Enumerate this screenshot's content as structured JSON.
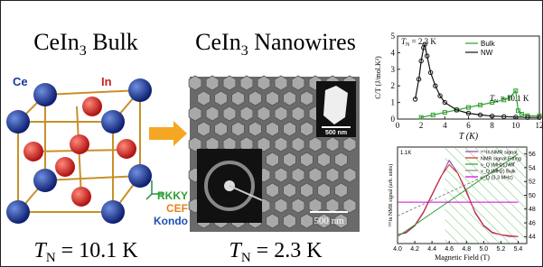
{
  "left": {
    "title": {
      "main": "CeIn",
      "sub": "3",
      "rest": " Bulk"
    },
    "atoms": [
      "Ce",
      "In"
    ],
    "interactions": [
      "RKKY",
      "CEF",
      "Kondo"
    ],
    "tn": {
      "symbol": "T",
      "sub": "N",
      "rest": " = 10.1 K"
    }
  },
  "middle": {
    "title": {
      "main": "CeIn",
      "sub": "3",
      "rest": " Nanowires"
    },
    "scale_bars": [
      "500 nm",
      "500 nm"
    ],
    "tn": {
      "symbol": "T",
      "sub": "N",
      "rest": " = 2.3 K"
    }
  },
  "chart_data": [
    {
      "type": "line",
      "ylabel": "C/T (J/mol.K²)",
      "xlabel": "T (K)",
      "xlim": [
        0,
        12
      ],
      "xticks": [
        0,
        2,
        4,
        6,
        8,
        10,
        12
      ],
      "ylim": [
        0,
        5
      ],
      "yticks": [
        0,
        1,
        2,
        3,
        4,
        5
      ],
      "legend": "upper right",
      "annotations": [
        {
          "symbol": "T",
          "sub": "N",
          "rest": " = 2.3 K"
        },
        {
          "symbol": "T",
          "sub": "N",
          "rest": " = 10.1 K"
        }
      ],
      "series": [
        {
          "name": "Bulk",
          "color": "#2ca02c",
          "marker": "square",
          "x": [
            2,
            3,
            4,
            5,
            6,
            7,
            8,
            9,
            9.5,
            10,
            10.2,
            10.5,
            11,
            12
          ],
          "values": [
            0.1,
            0.25,
            0.4,
            0.55,
            0.7,
            0.85,
            1.0,
            1.15,
            1.3,
            1.7,
            0.5,
            0.3,
            0.2,
            0.2
          ]
        },
        {
          "name": "NW",
          "color": "#111111",
          "marker": "circle",
          "x": [
            1.5,
            1.8,
            2.0,
            2.2,
            2.3,
            2.5,
            2.8,
            3.2,
            3.6,
            4,
            5,
            6,
            7,
            8,
            9,
            10,
            11,
            12
          ],
          "values": [
            1.2,
            2.4,
            3.5,
            4.3,
            4.5,
            3.8,
            2.8,
            2.0,
            1.4,
            1.0,
            0.55,
            0.35,
            0.25,
            0.18,
            0.15,
            0.12,
            0.1,
            0.1
          ]
        }
      ]
    },
    {
      "type": "line",
      "annotation": "1.1K",
      "xlabel": "Magnetic Field (T)",
      "ylabel": "¹¹⁵In NMR signal (arb. units)",
      "xlim": [
        4.0,
        5.5
      ],
      "xticks": [
        {
          "value": 4.0,
          "label": "4.0"
        },
        4.2,
        4.4,
        4.6,
        4.8,
        {
          "value": 5.0,
          "label": "5.0"
        },
        5.2,
        5.4
      ],
      "ylim": [
        0,
        1.1
      ],
      "y2lim": [
        43,
        57
      ],
      "y2ticks": [
        44,
        46,
        48,
        50,
        52,
        54,
        56
      ],
      "series": [
        {
          "name": "¹¹⁵In NMR signal",
          "color": "#8e44ad",
          "x": [
            4.0,
            4.1,
            4.2,
            4.3,
            4.4,
            4.5,
            4.6,
            4.7,
            4.8,
            4.9,
            5.0,
            5.1,
            5.2,
            5.3,
            5.4
          ],
          "values": [
            0.1,
            0.12,
            0.2,
            0.35,
            0.55,
            0.75,
            0.95,
            0.8,
            0.6,
            0.35,
            0.2,
            0.12,
            0.1,
            0.08,
            0.08
          ]
        },
        {
          "name": "NMR signal Fitting",
          "color": "#d62728",
          "x": [
            4.0,
            4.1,
            4.2,
            4.3,
            4.4,
            4.5,
            4.6,
            4.7,
            4.8,
            4.9,
            5.0,
            5.1,
            5.2,
            5.3,
            5.4
          ],
          "values": [
            0.1,
            0.13,
            0.21,
            0.36,
            0.56,
            0.76,
            0.9,
            0.8,
            0.58,
            0.36,
            0.21,
            0.13,
            0.1,
            0.09,
            0.08
          ]
        },
        {
          "name": "ν_Q (MHz) NW",
          "color": "#2ca02c",
          "axis": "y2",
          "x": [
            4.0,
            5.4
          ],
          "values": [
            44,
            56
          ]
        },
        {
          "name": "ν_Q (MHz) Bulk",
          "color": "#888888",
          "axis": "y2",
          "x": [
            4.0,
            5.4
          ],
          "values": [
            47,
            55
          ]
        },
        {
          "name": "ν_Q (3.3 MHz)",
          "color": "#d400d4",
          "axis": "y2",
          "x": [
            4.0,
            5.4
          ],
          "values": [
            49,
            49
          ]
        }
      ]
    }
  ]
}
